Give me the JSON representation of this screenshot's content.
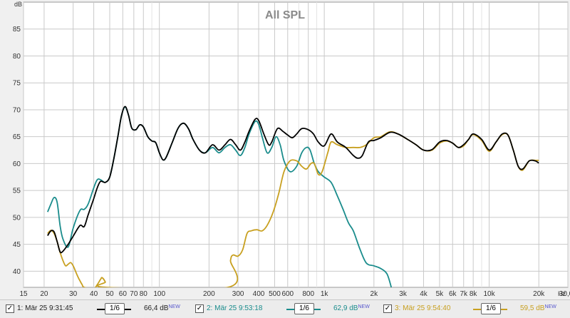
{
  "chart_data": {
    "type": "line",
    "title": "All SPL",
    "ylabel": "dB",
    "xlabel": "Hz",
    "x_scale": "log",
    "xlim": [
      15,
      30000
    ],
    "ylim": [
      37,
      90
    ],
    "grid": true,
    "y_ticks": [
      40,
      45,
      50,
      55,
      60,
      65,
      70,
      75,
      80,
      85
    ],
    "x_ticks": [
      {
        "v": 15,
        "label": "15"
      },
      {
        "v": 20,
        "label": "20"
      },
      {
        "v": 30,
        "label": "30"
      },
      {
        "v": 40,
        "label": "40"
      },
      {
        "v": 50,
        "label": "50"
      },
      {
        "v": 60,
        "label": "60"
      },
      {
        "v": 70,
        "label": "70"
      },
      {
        "v": 80,
        "label": "80"
      },
      {
        "v": 100,
        "label": "100"
      },
      {
        "v": 200,
        "label": "200"
      },
      {
        "v": 300,
        "label": "300"
      },
      {
        "v": 400,
        "label": "400"
      },
      {
        "v": 500,
        "label": "500"
      },
      {
        "v": 600,
        "label": "600"
      },
      {
        "v": 800,
        "label": "800"
      },
      {
        "v": 1000,
        "label": "1k"
      },
      {
        "v": 2000,
        "label": "2k"
      },
      {
        "v": 3000,
        "label": "3k"
      },
      {
        "v": 4000,
        "label": "4k"
      },
      {
        "v": 5000,
        "label": "5k"
      },
      {
        "v": 6000,
        "label": "6k"
      },
      {
        "v": 7000,
        "label": "7k"
      },
      {
        "v": 8000,
        "label": "8k"
      },
      {
        "v": 10000,
        "label": "10k"
      },
      {
        "v": 20000,
        "label": "20k"
      },
      {
        "v": 30000,
        "label": "30,0k"
      }
    ],
    "series": [
      {
        "name": "1: Mär 25 9:31:45",
        "color": "#000000",
        "points": [
          [
            21,
            46.6
          ],
          [
            22,
            47.5
          ],
          [
            23,
            47.3
          ],
          [
            24,
            45.5
          ],
          [
            25,
            43.6
          ],
          [
            26,
            43.7
          ],
          [
            28,
            45
          ],
          [
            30,
            46.5
          ],
          [
            33,
            48.5
          ],
          [
            35,
            48.3
          ],
          [
            37,
            50.5
          ],
          [
            40,
            53.5
          ],
          [
            42,
            55.5
          ],
          [
            44,
            56.7
          ],
          [
            47,
            56.5
          ],
          [
            50,
            57.5
          ],
          [
            53,
            61
          ],
          [
            56,
            65
          ],
          [
            59,
            69
          ],
          [
            62,
            70.6
          ],
          [
            65,
            69
          ],
          [
            68,
            66.6
          ],
          [
            72,
            66.3
          ],
          [
            76,
            67.2
          ],
          [
            80,
            66.8
          ],
          [
            85,
            65
          ],
          [
            90,
            64.2
          ],
          [
            95,
            63.9
          ],
          [
            100,
            62
          ],
          [
            105,
            60.7
          ],
          [
            110,
            61.2
          ],
          [
            120,
            64
          ],
          [
            130,
            66.6
          ],
          [
            140,
            67.5
          ],
          [
            150,
            66.5
          ],
          [
            160,
            64.5
          ],
          [
            175,
            62.5
          ],
          [
            190,
            62
          ],
          [
            210,
            63.5
          ],
          [
            230,
            62.5
          ],
          [
            250,
            63.5
          ],
          [
            270,
            64.5
          ],
          [
            290,
            63.5
          ],
          [
            310,
            62.5
          ],
          [
            330,
            64
          ],
          [
            350,
            66
          ],
          [
            380,
            68.2
          ],
          [
            400,
            68
          ],
          [
            430,
            65.5
          ],
          [
            460,
            63.5
          ],
          [
            480,
            64
          ],
          [
            520,
            66.5
          ],
          [
            560,
            66
          ],
          [
            600,
            65.3
          ],
          [
            640,
            64.8
          ],
          [
            680,
            65.5
          ],
          [
            730,
            66.5
          ],
          [
            800,
            66.3
          ],
          [
            860,
            65.5
          ],
          [
            920,
            64
          ],
          [
            1000,
            63.3
          ],
          [
            1100,
            65.5
          ],
          [
            1200,
            64
          ],
          [
            1350,
            63
          ],
          [
            1500,
            61.5
          ],
          [
            1600,
            61
          ],
          [
            1700,
            61.5
          ],
          [
            1850,
            64
          ],
          [
            2000,
            64.3
          ],
          [
            2200,
            64.8
          ],
          [
            2500,
            65.8
          ],
          [
            2800,
            65.5
          ],
          [
            3200,
            64.5
          ],
          [
            3600,
            63.5
          ],
          [
            4000,
            62.5
          ],
          [
            4500,
            62.6
          ],
          [
            5000,
            64
          ],
          [
            5500,
            64.3
          ],
          [
            6000,
            63.8
          ],
          [
            6500,
            63
          ],
          [
            7000,
            63.5
          ],
          [
            7500,
            64.5
          ],
          [
            8000,
            65.5
          ],
          [
            9000,
            64.5
          ],
          [
            10000,
            62.5
          ],
          [
            11000,
            64
          ],
          [
            12000,
            65.5
          ],
          [
            13000,
            65.3
          ],
          [
            14000,
            62.5
          ],
          [
            15000,
            59.5
          ],
          [
            16000,
            59
          ],
          [
            17500,
            60.5
          ],
          [
            19000,
            60.5
          ],
          [
            20000,
            60.1
          ]
        ]
      },
      {
        "name": "2: Mär 25 9:53:18",
        "color": "#1a8c8c",
        "points": [
          [
            21,
            51
          ],
          [
            22,
            52.5
          ],
          [
            23,
            53.7
          ],
          [
            24,
            52.8
          ],
          [
            25,
            48.5
          ],
          [
            26,
            46
          ],
          [
            28,
            44.5
          ],
          [
            30,
            48
          ],
          [
            33,
            51.3
          ],
          [
            35,
            51.5
          ],
          [
            37,
            52.5
          ],
          [
            40,
            55.5
          ],
          [
            42,
            57
          ],
          [
            44,
            57
          ],
          [
            47,
            56.5
          ],
          [
            50,
            57.5
          ],
          [
            53,
            61
          ],
          [
            56,
            65
          ],
          [
            59,
            69
          ],
          [
            62,
            70.5
          ],
          [
            65,
            69
          ],
          [
            68,
            66.6
          ],
          [
            72,
            66.3
          ],
          [
            76,
            67.2
          ],
          [
            80,
            66.8
          ],
          [
            85,
            65
          ],
          [
            90,
            64.2
          ],
          [
            95,
            63.9
          ],
          [
            100,
            62
          ],
          [
            105,
            60.7
          ],
          [
            110,
            61.2
          ],
          [
            120,
            64
          ],
          [
            130,
            66.6
          ],
          [
            140,
            67.5
          ],
          [
            150,
            66.5
          ],
          [
            160,
            64.5
          ],
          [
            175,
            62.5
          ],
          [
            190,
            62
          ],
          [
            210,
            63
          ],
          [
            230,
            62
          ],
          [
            250,
            63
          ],
          [
            270,
            63.5
          ],
          [
            290,
            62.5
          ],
          [
            310,
            61.5
          ],
          [
            330,
            63
          ],
          [
            350,
            65.5
          ],
          [
            380,
            67.8
          ],
          [
            400,
            67.3
          ],
          [
            420,
            65
          ],
          [
            450,
            62
          ],
          [
            480,
            63
          ],
          [
            510,
            65
          ],
          [
            540,
            63.5
          ],
          [
            570,
            60.5
          ],
          [
            620,
            58.5
          ],
          [
            680,
            59.5
          ],
          [
            730,
            62
          ],
          [
            780,
            63
          ],
          [
            820,
            62.5
          ],
          [
            870,
            60
          ],
          [
            920,
            58.5
          ],
          [
            1000,
            57.5
          ],
          [
            1100,
            56.5
          ],
          [
            1200,
            54
          ],
          [
            1300,
            51.5
          ],
          [
            1400,
            49
          ],
          [
            1500,
            47.5
          ],
          [
            1650,
            44
          ],
          [
            1800,
            41.5
          ],
          [
            2000,
            41
          ],
          [
            2200,
            40.5
          ],
          [
            2400,
            39.5
          ],
          [
            2550,
            37
          ]
        ]
      },
      {
        "name": "3: Mär 25 9:54:40",
        "color": "#c8a020",
        "points": [
          [
            21,
            47
          ],
          [
            22,
            47.6
          ],
          [
            23,
            47
          ],
          [
            24,
            45.5
          ],
          [
            25,
            43.5
          ],
          [
            26,
            42
          ],
          [
            27,
            41
          ],
          [
            28,
            41.3
          ],
          [
            29,
            41.6
          ],
          [
            30,
            41
          ],
          [
            31,
            40
          ],
          [
            32,
            39
          ],
          [
            33,
            38.2
          ],
          [
            34,
            37.5
          ],
          [
            35,
            37
          ],
          [
            40,
            36.8
          ],
          [
            42,
            37.5
          ],
          [
            44,
            38.5
          ],
          [
            45,
            38.8
          ],
          [
            47,
            38
          ],
          [
            48,
            37
          ],
          [
            260,
            37
          ],
          [
            270,
            42
          ],
          [
            280,
            43
          ],
          [
            300,
            42.8
          ],
          [
            320,
            44
          ],
          [
            340,
            47
          ],
          [
            360,
            47.5
          ],
          [
            390,
            47.7
          ],
          [
            420,
            47.5
          ],
          [
            450,
            48.5
          ],
          [
            490,
            51
          ],
          [
            530,
            54.5
          ],
          [
            570,
            58.5
          ],
          [
            620,
            60.5
          ],
          [
            680,
            60.5
          ],
          [
            730,
            59.5
          ],
          [
            780,
            59
          ],
          [
            830,
            60
          ],
          [
            870,
            60
          ],
          [
            920,
            58
          ],
          [
            970,
            58.5
          ],
          [
            1050,
            62
          ],
          [
            1100,
            64
          ],
          [
            1200,
            63.5
          ],
          [
            1350,
            63
          ],
          [
            1500,
            63
          ],
          [
            1650,
            63
          ],
          [
            1800,
            63.5
          ],
          [
            2000,
            64.8
          ],
          [
            2200,
            65
          ],
          [
            2500,
            65.9
          ],
          [
            2800,
            65.5
          ],
          [
            3200,
            64.5
          ],
          [
            3600,
            63.5
          ],
          [
            4000,
            62.5
          ],
          [
            4500,
            62.5
          ],
          [
            5000,
            63.8
          ],
          [
            5500,
            64.2
          ],
          [
            6000,
            63.8
          ],
          [
            6500,
            63
          ],
          [
            7000,
            63.3
          ],
          [
            7500,
            64.5
          ],
          [
            8000,
            65.4
          ],
          [
            9000,
            64.3
          ],
          [
            10000,
            62.3
          ],
          [
            11000,
            64
          ],
          [
            12000,
            65.4
          ],
          [
            13000,
            65.3
          ],
          [
            14000,
            62.5
          ],
          [
            15000,
            59.5
          ],
          [
            16000,
            58.8
          ],
          [
            17500,
            60.5
          ],
          [
            19000,
            60.6
          ],
          [
            20000,
            60.6
          ]
        ]
      }
    ]
  },
  "legend": [
    {
      "check": "✓",
      "name": "1: Mär 25 9:31:45",
      "smoothing": "1/6",
      "value": "66,4 dB",
      "badge": "NEW",
      "color": "#000000",
      "text_color": "#222222"
    },
    {
      "check": "✓",
      "name": "2: Mär 25 9:53:18",
      "smoothing": "1/6",
      "value": "62,9 dB",
      "badge": "NEW",
      "color": "#1a8c8c",
      "text_color": "#1a8c8c"
    },
    {
      "check": "✓",
      "name": "3: Mär 25 9:54:40",
      "smoothing": "1/6",
      "value": "59,5 dB",
      "badge": "NEW",
      "color": "#c8a020",
      "text_color": "#c8a020"
    }
  ]
}
